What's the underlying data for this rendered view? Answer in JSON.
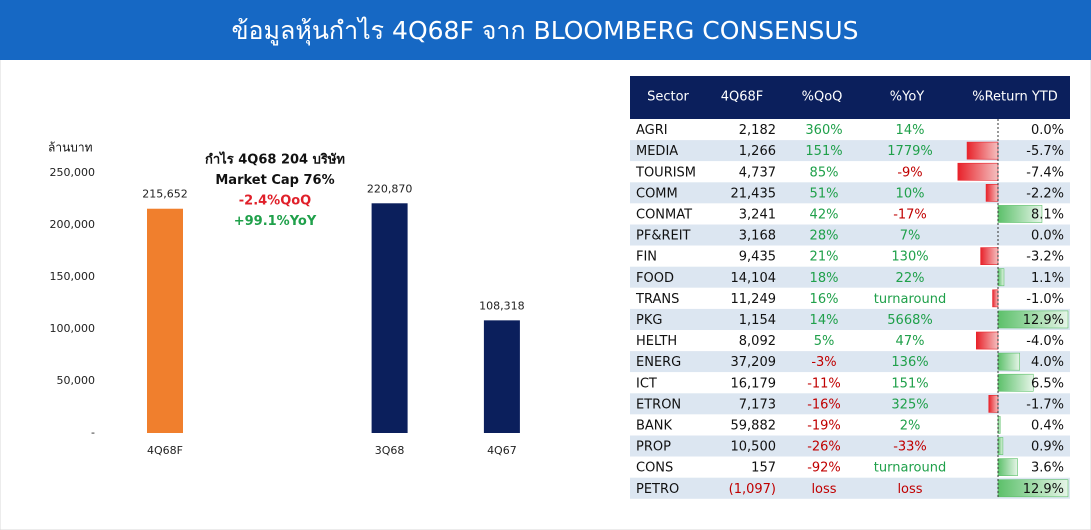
{
  "header": {
    "title": "ข้อมูลหุ้นกำไร 4Q68F จาก BLOOMBERG CONSENSUS"
  },
  "chart_data": {
    "type": "bar",
    "y_label": "ล้านบาท",
    "annotations": [
      {
        "text": "กำไร 4Q68 204 บริษัท",
        "color": "#111111"
      },
      {
        "text": "Market Cap 76%",
        "color": "#111111"
      },
      {
        "text": "-2.4%QoQ",
        "color": "#e0202a"
      },
      {
        "text": "+99.1%YoY",
        "color": "#1fa04a"
      }
    ],
    "categories": [
      "4Q68F",
      null,
      "3Q68",
      "4Q67"
    ],
    "values": [
      215652,
      null,
      220870,
      108318
    ],
    "value_labels": [
      "215,652",
      null,
      "220,870",
      "108,318"
    ],
    "colors": [
      "#f07f2d",
      null,
      "#0b1f5c",
      "#0b1f5c"
    ],
    "ylim": [
      0,
      250000
    ],
    "yticks": [
      {
        "value": 0,
        "label": "-"
      },
      {
        "value": 50000,
        "label": "50,000"
      },
      {
        "value": 100000,
        "label": "100,000"
      },
      {
        "value": 150000,
        "label": "150,000"
      },
      {
        "value": 200000,
        "label": "200,000"
      },
      {
        "value": 250000,
        "label": "250,000"
      }
    ]
  },
  "table": {
    "columns": [
      "Sector",
      "4Q68F",
      "%QoQ",
      "%YoY",
      "%Return YTD"
    ],
    "rows": [
      {
        "sector": "AGRI",
        "profit": "2,182",
        "qoq": "360%",
        "yoy": "14%",
        "ytd": {
          "value": 0.0,
          "label": "0.0%"
        },
        "colors": [
          "#111111",
          "#1fa04a",
          "#1fa04a"
        ]
      },
      {
        "sector": "MEDIA",
        "profit": "1,266",
        "qoq": "151%",
        "yoy": "1779%",
        "ytd": {
          "value": -5.7,
          "label": "-5.7%"
        },
        "colors": [
          "#111111",
          "#1fa04a",
          "#1fa04a"
        ]
      },
      {
        "sector": "TOURISM",
        "profit": "4,737",
        "qoq": "85%",
        "yoy": "-9%",
        "ytd": {
          "value": -7.4,
          "label": "-7.4%"
        },
        "colors": [
          "#111111",
          "#1fa04a",
          "#c00000"
        ]
      },
      {
        "sector": "COMM",
        "profit": "21,435",
        "qoq": "51%",
        "yoy": "10%",
        "ytd": {
          "value": -2.2,
          "label": "-2.2%"
        },
        "colors": [
          "#111111",
          "#1fa04a",
          "#1fa04a"
        ]
      },
      {
        "sector": "CONMAT",
        "profit": "3,241",
        "qoq": "42%",
        "yoy": "-17%",
        "ytd": {
          "value": 8.1,
          "label": "8.1%"
        },
        "colors": [
          "#111111",
          "#1fa04a",
          "#c00000"
        ]
      },
      {
        "sector": "PF&REIT",
        "profit": "3,168",
        "qoq": "28%",
        "yoy": "7%",
        "ytd": {
          "value": 0.0,
          "label": "0.0%"
        },
        "colors": [
          "#111111",
          "#1fa04a",
          "#1fa04a"
        ]
      },
      {
        "sector": "FIN",
        "profit": "9,435",
        "qoq": "21%",
        "yoy": "130%",
        "ytd": {
          "value": -3.2,
          "label": "-3.2%"
        },
        "colors": [
          "#111111",
          "#1fa04a",
          "#1fa04a"
        ]
      },
      {
        "sector": "FOOD",
        "profit": "14,104",
        "qoq": "18%",
        "yoy": "22%",
        "ytd": {
          "value": 1.1,
          "label": "1.1%"
        },
        "colors": [
          "#111111",
          "#1fa04a",
          "#1fa04a"
        ]
      },
      {
        "sector": "TRANS",
        "profit": "11,249",
        "qoq": "16%",
        "yoy": "turnaround",
        "ytd": {
          "value": -1.0,
          "label": "-1.0%"
        },
        "colors": [
          "#111111",
          "#1fa04a",
          "#1fa04a"
        ]
      },
      {
        "sector": "PKG",
        "profit": "1,154",
        "qoq": "14%",
        "yoy": "5668%",
        "ytd": {
          "value": 12.9,
          "label": "12.9%"
        },
        "colors": [
          "#111111",
          "#1fa04a",
          "#1fa04a"
        ]
      },
      {
        "sector": "HELTH",
        "profit": "8,092",
        "qoq": "5%",
        "yoy": "47%",
        "ytd": {
          "value": -4.0,
          "label": "-4.0%"
        },
        "colors": [
          "#111111",
          "#1fa04a",
          "#1fa04a"
        ]
      },
      {
        "sector": "ENERG",
        "profit": "37,209",
        "qoq": "-3%",
        "yoy": "136%",
        "ytd": {
          "value": 4.0,
          "label": "4.0%"
        },
        "colors": [
          "#111111",
          "#c00000",
          "#1fa04a"
        ]
      },
      {
        "sector": "ICT",
        "profit": "16,179",
        "qoq": "-11%",
        "yoy": "151%",
        "ytd": {
          "value": 6.5,
          "label": "6.5%"
        },
        "colors": [
          "#111111",
          "#c00000",
          "#1fa04a"
        ]
      },
      {
        "sector": "ETRON",
        "profit": "7,173",
        "qoq": "-16%",
        "yoy": "325%",
        "ytd": {
          "value": -1.7,
          "label": "-1.7%"
        },
        "colors": [
          "#111111",
          "#c00000",
          "#1fa04a"
        ]
      },
      {
        "sector": "BANK",
        "profit": "59,882",
        "qoq": "-19%",
        "yoy": "2%",
        "ytd": {
          "value": 0.4,
          "label": "0.4%"
        },
        "colors": [
          "#111111",
          "#c00000",
          "#1fa04a"
        ]
      },
      {
        "sector": "PROP",
        "profit": "10,500",
        "qoq": "-26%",
        "yoy": "-33%",
        "ytd": {
          "value": 0.9,
          "label": "0.9%"
        },
        "colors": [
          "#111111",
          "#c00000",
          "#c00000"
        ]
      },
      {
        "sector": "CONS",
        "profit": "157",
        "qoq": "-92%",
        "yoy": "turnaround",
        "ytd": {
          "value": 3.6,
          "label": "3.6%"
        },
        "colors": [
          "#111111",
          "#c00000",
          "#1fa04a"
        ]
      },
      {
        "sector": "PETRO",
        "profit": "(1,097)",
        "qoq": "loss",
        "yoy": "loss",
        "ytd": {
          "value": 12.9,
          "label": "12.9%"
        },
        "colors": [
          "#c00000",
          "#c00000",
          "#c00000"
        ]
      }
    ]
  }
}
